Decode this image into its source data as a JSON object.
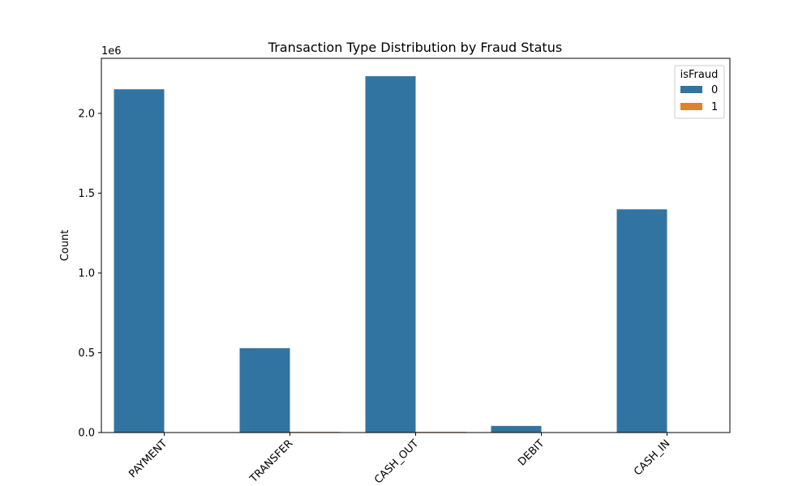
{
  "chart_data": {
    "type": "bar",
    "title": "Transaction Type Distribution by Fraud Status",
    "xlabel": "",
    "ylabel": "Count",
    "y_scale_label": "1e6",
    "ylim": [
      0,
      2345000
    ],
    "yticks": [
      0,
      500000,
      1000000,
      1500000,
      2000000
    ],
    "ytick_labels": [
      "0.0",
      "0.5",
      "1.0",
      "1.5",
      "2.0"
    ],
    "categories": [
      "PAYMENT",
      "TRANSFER",
      "CASH_OUT",
      "DEBIT",
      "CASH_IN"
    ],
    "legend_title": "isFraud",
    "legend_position": "top-right",
    "grid": false,
    "series": [
      {
        "name": "0",
        "color": "#3274a1",
        "values": [
          2151000,
          528800,
          2233000,
          41400,
          1399000
        ]
      },
      {
        "name": "1",
        "color": "#e1812c",
        "values": [
          0,
          4097,
          4116,
          0,
          0
        ]
      }
    ]
  }
}
